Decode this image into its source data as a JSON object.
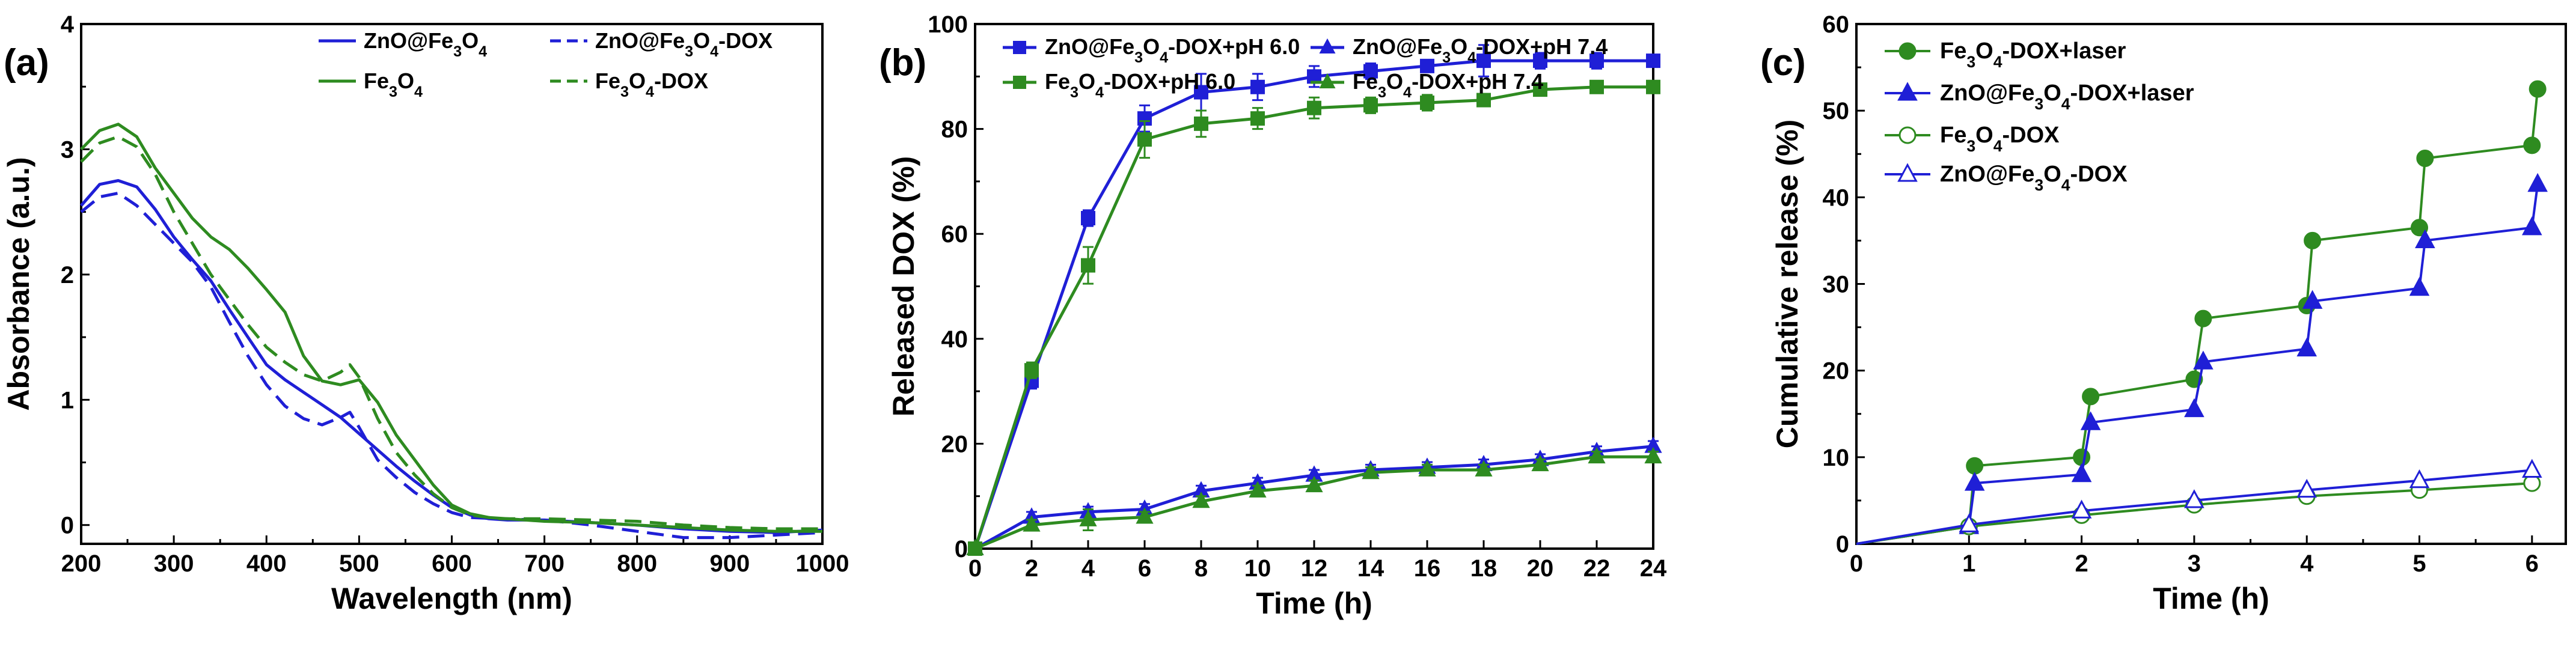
{
  "figure": {
    "panels": [
      "(a)",
      "(b)",
      "(c)"
    ]
  },
  "chart_data": [
    {
      "panel": "(a)",
      "type": "line",
      "xlabel": "Wavelength (nm)",
      "ylabel": "Absorbance (a.u.)",
      "xlim": [
        200,
        1000
      ],
      "ylim": [
        -0.15,
        4
      ],
      "xticks": [
        "200",
        "300",
        "400",
        "500",
        "600",
        "700",
        "800",
        "900",
        "1000"
      ],
      "yticks": [
        "0",
        "1",
        "2",
        "3",
        "4"
      ],
      "series": [
        {
          "name": "ZnO@Fe3O4",
          "legend": {
            "base": "ZnO@Fe",
            "sub": "3",
            "mid": "O",
            "sub2": "4",
            "tail": ""
          },
          "color": "#1f1fd6",
          "dash": "solid",
          "x": [
            200,
            220,
            240,
            260,
            280,
            300,
            320,
            340,
            360,
            380,
            400,
            420,
            440,
            460,
            480,
            500,
            520,
            540,
            560,
            580,
            600,
            620,
            640,
            660,
            700,
            750,
            800,
            850,
            900,
            950,
            1000
          ],
          "y": [
            2.55,
            2.72,
            2.75,
            2.7,
            2.52,
            2.3,
            2.12,
            1.95,
            1.72,
            1.5,
            1.28,
            1.16,
            1.06,
            0.96,
            0.86,
            0.73,
            0.6,
            0.47,
            0.35,
            0.24,
            0.14,
            0.08,
            0.05,
            0.04,
            0.04,
            0.02,
            0.0,
            -0.03,
            -0.05,
            -0.06,
            -0.04
          ]
        },
        {
          "name": "ZnO@Fe3O4-DOX",
          "legend": {
            "base": "ZnO@Fe",
            "sub": "3",
            "mid": "O",
            "sub2": "4",
            "tail": "-DOX"
          },
          "color": "#1f1fd6",
          "dash": "dashed",
          "x": [
            200,
            220,
            240,
            260,
            280,
            300,
            320,
            340,
            360,
            380,
            400,
            420,
            440,
            460,
            480,
            490,
            500,
            520,
            540,
            560,
            580,
            600,
            620,
            650,
            700,
            750,
            800,
            850,
            900,
            950,
            1000
          ],
          "y": [
            2.5,
            2.62,
            2.65,
            2.55,
            2.4,
            2.25,
            2.1,
            1.9,
            1.62,
            1.35,
            1.12,
            0.95,
            0.85,
            0.8,
            0.86,
            0.9,
            0.78,
            0.52,
            0.38,
            0.26,
            0.17,
            0.1,
            0.06,
            0.05,
            0.04,
            0.0,
            -0.05,
            -0.1,
            -0.1,
            -0.08,
            -0.06
          ]
        },
        {
          "name": "Fe3O4",
          "legend": {
            "base": "Fe",
            "sub": "3",
            "mid": "O",
            "sub2": "4",
            "tail": ""
          },
          "color": "#2e8b20",
          "dash": "solid",
          "x": [
            200,
            220,
            240,
            260,
            280,
            300,
            320,
            340,
            360,
            380,
            400,
            420,
            440,
            460,
            480,
            500,
            520,
            540,
            560,
            580,
            600,
            620,
            640,
            660,
            700,
            750,
            800,
            850,
            900,
            950,
            1000
          ],
          "y": [
            3.0,
            3.15,
            3.2,
            3.1,
            2.85,
            2.65,
            2.45,
            2.3,
            2.2,
            2.05,
            1.88,
            1.7,
            1.35,
            1.15,
            1.12,
            1.16,
            0.98,
            0.72,
            0.52,
            0.32,
            0.16,
            0.09,
            0.06,
            0.05,
            0.03,
            0.02,
            0.0,
            -0.02,
            -0.04,
            -0.05,
            -0.05
          ]
        },
        {
          "name": "Fe3O4-DOX",
          "legend": {
            "base": "Fe",
            "sub": "3",
            "mid": "O",
            "sub2": "4",
            "tail": "-DOX"
          },
          "color": "#2e8b20",
          "dash": "dashed",
          "x": [
            200,
            220,
            240,
            260,
            280,
            300,
            320,
            340,
            360,
            380,
            400,
            420,
            440,
            460,
            480,
            490,
            500,
            520,
            540,
            560,
            580,
            600,
            620,
            650,
            700,
            750,
            800,
            850,
            900,
            950,
            1000
          ],
          "y": [
            2.9,
            3.05,
            3.1,
            3.02,
            2.8,
            2.5,
            2.25,
            2.0,
            1.8,
            1.6,
            1.42,
            1.3,
            1.2,
            1.15,
            1.22,
            1.28,
            1.18,
            0.85,
            0.58,
            0.4,
            0.25,
            0.14,
            0.08,
            0.05,
            0.05,
            0.04,
            0.03,
            0.0,
            -0.02,
            -0.03,
            -0.03
          ]
        }
      ]
    },
    {
      "panel": "(b)",
      "type": "line",
      "xlabel": "Time (h)",
      "ylabel": "Released DOX (%)",
      "xlim": [
        0,
        24
      ],
      "ylim": [
        0,
        100
      ],
      "xticks": [
        "0",
        "2",
        "4",
        "6",
        "8",
        "10",
        "12",
        "14",
        "16",
        "18",
        "20",
        "22",
        "24"
      ],
      "yticks": [
        "0",
        "20",
        "40",
        "60",
        "80",
        "100"
      ],
      "x": [
        0,
        2,
        4,
        6,
        8,
        10,
        12,
        14,
        16,
        18,
        20,
        22,
        24
      ],
      "series": [
        {
          "name": "ZnO@Fe3O4-DOX+pH 6.0",
          "legend": {
            "base": "ZnO@Fe",
            "sub": "3",
            "mid": "O",
            "sub2": "4",
            "tail": "-DOX+pH 6.0"
          },
          "color": "#1f1fd6",
          "marker": "square",
          "values": [
            0,
            32,
            63,
            82,
            87,
            88,
            90,
            91,
            92,
            93,
            93,
            93,
            93
          ],
          "err": [
            0,
            1.5,
            1.5,
            2.5,
            3.5,
            2.5,
            2.0,
            1.5,
            1.0,
            3.0,
            1.5,
            1.5,
            1.0
          ]
        },
        {
          "name": "ZnO@Fe3O4-DOX+pH 7.4",
          "legend": {
            "base": "ZnO@Fe",
            "sub": "3",
            "mid": "O",
            "sub2": "4",
            "tail": "-DOX+pH 7.4"
          },
          "color": "#1f1fd6",
          "marker": "triangle",
          "values": [
            0,
            6,
            7,
            7.5,
            11,
            12.5,
            14,
            15,
            15.5,
            16,
            17,
            18.5,
            19.5
          ],
          "err": [
            0,
            1,
            1,
            1,
            1,
            1,
            1,
            1,
            1,
            1,
            1,
            1,
            1
          ]
        },
        {
          "name": "Fe3O4-DOX+pH 6.0",
          "legend": {
            "base": "Fe",
            "sub": "3",
            "mid": "O",
            "sub2": "4",
            "tail": "-DOX+pH 6.0"
          },
          "color": "#2e8b20",
          "marker": "square",
          "values": [
            0,
            34,
            54,
            78,
            81,
            82,
            84,
            84.5,
            85,
            85.5,
            87.5,
            88,
            88
          ],
          "err": [
            0,
            1.5,
            3.5,
            3.5,
            2.5,
            2.0,
            2.0,
            1.5,
            1.5,
            1.0,
            1.0,
            1.0,
            1.0
          ]
        },
        {
          "name": "Fe3O4-DOX+pH 7.4",
          "legend": {
            "base": "Fe",
            "sub": "3",
            "mid": "O",
            "sub2": "4",
            "tail": "-DOX+pH 7.4"
          },
          "color": "#2e8b20",
          "marker": "triangle",
          "values": [
            0,
            4.5,
            5.5,
            6,
            9,
            11,
            12,
            14.5,
            15,
            15,
            16,
            17.5,
            17.5
          ],
          "err": [
            0,
            1,
            2,
            1,
            1,
            1,
            1,
            1,
            1,
            1,
            1,
            1,
            1
          ]
        }
      ]
    },
    {
      "panel": "(c)",
      "type": "line",
      "xlabel": "Time (h)",
      "ylabel": "Cumulative release (%)",
      "xlim": [
        0,
        6.3
      ],
      "ylim": [
        0,
        60
      ],
      "xticks": [
        "0",
        "1",
        "2",
        "3",
        "4",
        "5",
        "6"
      ],
      "yticks": [
        "0",
        "10",
        "20",
        "30",
        "40",
        "50",
        "60"
      ],
      "series": [
        {
          "name": "Fe3O4-DOX+laser",
          "legend": {
            "base": "Fe",
            "sub": "3",
            "mid": "O",
            "sub2": "4",
            "tail": "-DOX+laser"
          },
          "color": "#2e8b20",
          "marker": "circle",
          "filled": true,
          "x": [
            0,
            1,
            1.05,
            2,
            2.08,
            3,
            3.08,
            4,
            4.05,
            5,
            5.05,
            6,
            6.05
          ],
          "y": [
            0,
            2,
            9,
            10,
            17,
            19,
            26,
            27.5,
            35,
            36.5,
            44.5,
            46,
            52.5
          ]
        },
        {
          "name": "ZnO@Fe3O4-DOX+laser",
          "legend": {
            "base": "ZnO@Fe",
            "sub": "3",
            "mid": "O",
            "sub2": "4",
            "tail": "-DOX+laser"
          },
          "color": "#1f1fd6",
          "marker": "triangle",
          "filled": true,
          "x": [
            0,
            1,
            1.05,
            2,
            2.08,
            3,
            3.08,
            4,
            4.05,
            5,
            5.05,
            6,
            6.05
          ],
          "y": [
            0,
            2,
            7,
            8,
            14,
            15.5,
            21,
            22.5,
            28,
            29.5,
            35,
            36.5,
            41.5
          ]
        },
        {
          "name": "Fe3O4-DOX",
          "legend": {
            "base": "Fe",
            "sub": "3",
            "mid": "O",
            "sub2": "4",
            "tail": "-DOX"
          },
          "color": "#2e8b20",
          "marker": "circle",
          "filled": false,
          "x": [
            0,
            1,
            2,
            3,
            4,
            5,
            6
          ],
          "y": [
            0,
            2,
            3.3,
            4.5,
            5.5,
            6.2,
            7
          ]
        },
        {
          "name": "ZnO@Fe3O4-DOX",
          "legend": {
            "base": "ZnO@Fe",
            "sub": "3",
            "mid": "O",
            "sub2": "4",
            "tail": "-DOX"
          },
          "color": "#1f1fd6",
          "marker": "triangle",
          "filled": false,
          "x": [
            0,
            1,
            2,
            3,
            4,
            5,
            6
          ],
          "y": [
            0,
            2.2,
            3.8,
            5,
            6.2,
            7.3,
            8.5
          ]
        }
      ]
    }
  ]
}
